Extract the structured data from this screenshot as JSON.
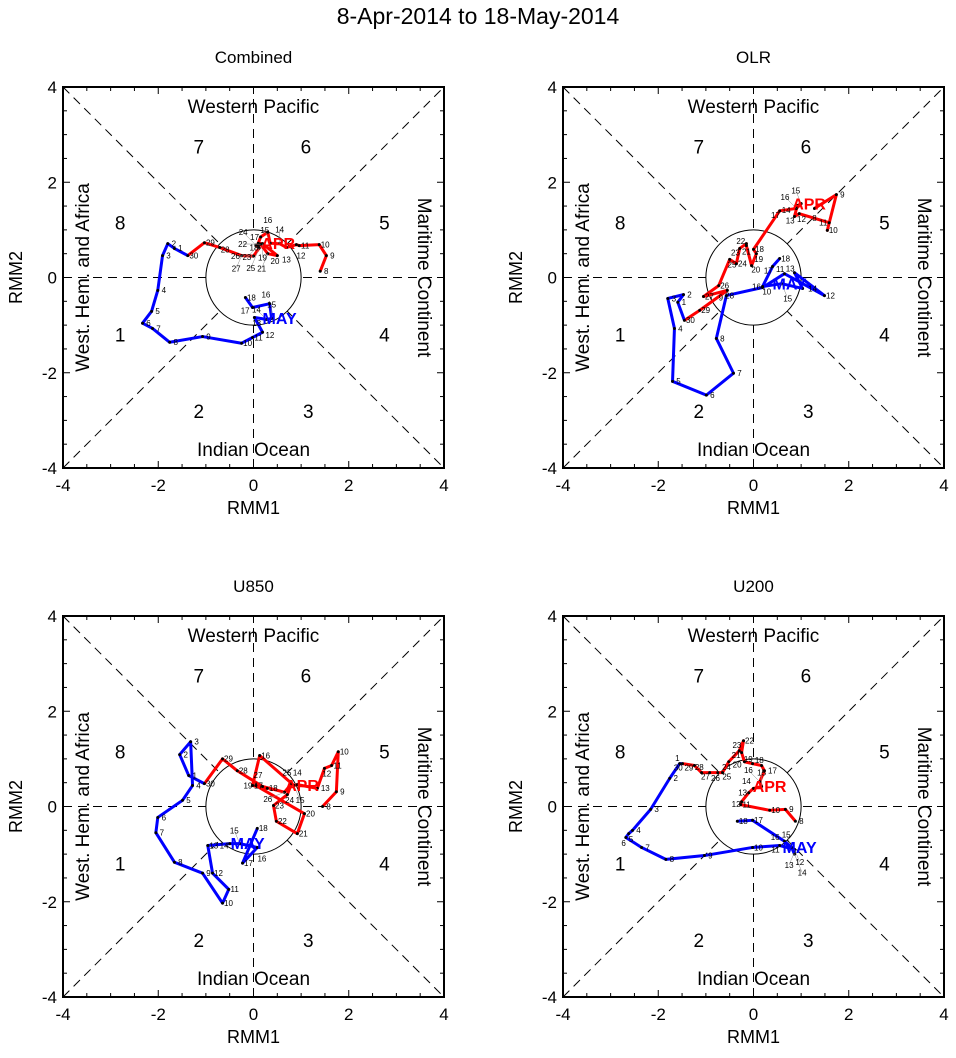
{
  "title": "8-Apr-2014 to 18-May-2014",
  "axis": {
    "xlabel": "RMM1",
    "ylabel": "RMM2",
    "ticks": [
      -4,
      -2,
      0,
      2,
      4
    ],
    "xlim": [
      -4,
      4
    ],
    "ylim": [
      -4,
      4
    ]
  },
  "regions": {
    "top": "Western Pacific",
    "bottom": "Indian Ocean",
    "left": "West. Hem. and Africa",
    "right": "Maritime Continent"
  },
  "phases": [
    "1",
    "2",
    "3",
    "4",
    "5",
    "6",
    "7",
    "8"
  ],
  "colors": {
    "apr": "#ff0000",
    "may": "#0000ff"
  },
  "chart_data": [
    {
      "type": "line",
      "title": "Combined",
      "series": [
        {
          "name": "APR",
          "days": [
            8,
            9,
            10,
            11,
            12,
            13,
            14,
            15,
            16,
            17,
            18,
            19,
            20,
            21,
            22,
            23,
            24,
            25,
            26,
            27,
            28,
            29,
            30
          ],
          "rmm1": [
            1.4,
            1.53,
            1.38,
            0.96,
            0.9,
            0.69,
            0.55,
            0.35,
            0.3,
            0.15,
            0.1,
            0.19,
            0.5,
            0.3,
            0.15,
            0.1,
            0.05,
            0.12,
            0.0,
            -0.25,
            -0.71,
            -1.03,
            -1.38
          ],
          "rmm2": [
            0.13,
            0.46,
            0.69,
            0.67,
            0.69,
            0.63,
            0.71,
            0.72,
            0.95,
            0.85,
            0.72,
            0.71,
            0.46,
            0.5,
            0.7,
            0.66,
            0.68,
            0.62,
            0.45,
            0.46,
            0.63,
            0.73,
            0.46
          ]
        },
        {
          "name": "MAY",
          "days": [
            1,
            2,
            3,
            4,
            5,
            6,
            7,
            8,
            9,
            10,
            11,
            12,
            13,
            14,
            15,
            16,
            17,
            18
          ],
          "rmm1": [
            -1.66,
            -1.8,
            -1.91,
            -2.01,
            -2.14,
            -2.33,
            -2.12,
            -1.76,
            -1.07,
            -0.25,
            -0.02,
            0.19,
            0.02,
            0.27,
            0.38,
            0.34,
            -0.02,
            -0.17
          ],
          "rmm2": [
            0.61,
            0.71,
            0.46,
            -0.27,
            -0.71,
            -0.96,
            -1.07,
            -1.36,
            -1.24,
            -1.38,
            -1.26,
            -1.15,
            -0.84,
            -0.88,
            -0.86,
            -0.55,
            -0.63,
            -0.42
          ]
        }
      ]
    },
    {
      "type": "line",
      "title": "OLR",
      "series": [
        {
          "name": "APR",
          "days": [
            8,
            9,
            10,
            11,
            12,
            13,
            14,
            15,
            16,
            17,
            18,
            19,
            20,
            21,
            22,
            23,
            24,
            25,
            26,
            27,
            28,
            29,
            30
          ],
          "rmm1": [
            1.28,
            1.74,
            1.55,
            1.59,
            0.96,
            0.86,
            0.92,
            1.0,
            0.9,
            0.55,
            0.0,
            0.06,
            -0.04,
            -0.15,
            -0.15,
            -0.29,
            -0.36,
            -0.5,
            -0.73,
            -1.05,
            -0.55,
            -1.13,
            -1.45
          ],
          "rmm2": [
            1.45,
            1.74,
            0.99,
            1.15,
            1.34,
            1.28,
            1.51,
            1.55,
            1.45,
            1.4,
            0.59,
            0.5,
            0.25,
            0.67,
            0.71,
            0.61,
            0.29,
            0.38,
            -0.17,
            -0.4,
            -0.27,
            -0.69,
            -0.9
          ]
        },
        {
          "name": "MAY",
          "days": [
            1,
            2,
            3,
            4,
            5,
            6,
            7,
            8,
            9,
            10,
            11,
            12,
            13,
            14,
            15,
            16,
            17,
            18
          ],
          "rmm1": [
            -1.59,
            -1.47,
            -1.8,
            -1.66,
            -1.7,
            -0.99,
            -0.42,
            -0.78,
            -0.57,
            0.19,
            0.65,
            1.49,
            0.86,
            1.03,
            0.59,
            0.19,
            0.4,
            0.55
          ],
          "rmm2": [
            -0.52,
            -0.36,
            -0.44,
            -1.07,
            -2.18,
            -2.47,
            -2.01,
            -1.28,
            -0.38,
            -0.21,
            0.08,
            -0.38,
            0.1,
            -0.23,
            -0.13,
            -0.19,
            0.23,
            0.4
          ]
        }
      ]
    },
    {
      "type": "line",
      "title": "U850",
      "series": [
        {
          "name": "APR",
          "days": [
            8,
            9,
            10,
            11,
            12,
            13,
            14,
            15,
            16,
            17,
            18,
            19,
            20,
            21,
            22,
            23,
            24,
            25,
            26,
            27,
            28,
            29,
            30
          ],
          "rmm1": [
            1.45,
            1.74,
            1.78,
            1.64,
            1.49,
            1.34,
            0.92,
            0.85,
            0.13,
            -0.02,
            0.29,
            0.05,
            1.07,
            0.92,
            0.48,
            0.42,
            0.71,
            0.8,
            0.65,
            0.19,
            -0.34,
            -0.65,
            -1.03
          ],
          "rmm2": [
            0.0,
            0.31,
            1.15,
            0.86,
            0.8,
            0.38,
            0.46,
            0.44,
            1.07,
            0.44,
            0.38,
            0.44,
            -0.15,
            -0.57,
            -0.31,
            0.02,
            0.25,
            0.48,
            0.3,
            0.42,
            0.75,
            1.0,
            0.48
          ]
        },
        {
          "name": "MAY",
          "days": [
            1,
            2,
            3,
            4,
            5,
            6,
            7,
            8,
            9,
            10,
            11,
            12,
            13,
            14,
            15,
            16,
            17,
            18
          ],
          "rmm1": [
            -1.36,
            -1.55,
            -1.32,
            -1.28,
            -1.49,
            -2.01,
            -2.05,
            -1.66,
            -1.07,
            -0.65,
            -0.52,
            -0.86,
            -0.96,
            -0.5,
            -0.29,
            0.08,
            -0.23,
            0.08
          ],
          "rmm2": [
            0.65,
            1.09,
            1.36,
            0.44,
            0.13,
            -0.23,
            -0.55,
            -1.17,
            -1.4,
            -2.03,
            -1.74,
            -1.4,
            -0.82,
            -0.78,
            -0.78,
            -0.86,
            -1.19,
            -0.46
          ]
        }
      ]
    },
    {
      "type": "line",
      "title": "U200",
      "series": [
        {
          "name": "APR",
          "days": [
            8,
            9,
            10,
            11,
            12,
            13,
            14,
            15,
            16,
            17,
            18,
            19,
            20,
            21,
            22,
            23,
            24,
            25,
            26,
            27,
            28,
            29,
            30
          ],
          "rmm1": [
            0.88,
            0.67,
            0.34,
            -0.27,
            -0.25,
            -0.1,
            0.0,
            0.17,
            0.13,
            0.23,
            0.17,
            -0.02,
            -0.19,
            -0.25,
            -0.21,
            -0.3,
            -0.52,
            -0.65,
            -0.75,
            -0.92,
            -1.09,
            -1.24,
            -1.49
          ],
          "rmm2": [
            -0.31,
            -0.06,
            -0.08,
            0.04,
            0.1,
            0.29,
            0.38,
            0.42,
            0.52,
            0.75,
            0.86,
            0.9,
            0.94,
            1.13,
            1.38,
            1.17,
            0.94,
            0.71,
            0.71,
            0.71,
            0.71,
            0.86,
            0.9
          ]
        },
        {
          "name": "MAY",
          "days": [
            1,
            2,
            3,
            4,
            5,
            6,
            7,
            8,
            9,
            10,
            11,
            12,
            13,
            14,
            15,
            16,
            17,
            18
          ],
          "rmm1": [
            -1.55,
            -1.76,
            -2.16,
            -2.54,
            -2.62,
            -2.68,
            -2.35,
            -1.84,
            -1.03,
            -0.02,
            0.55,
            0.86,
            0.86,
            0.86,
            0.8,
            0.65,
            -0.02,
            -0.34
          ],
          "rmm2": [
            0.9,
            0.59,
            -0.06,
            -0.5,
            -0.57,
            -0.65,
            -0.86,
            -1.11,
            -1.03,
            -0.86,
            -0.82,
            -0.9,
            -0.96,
            -1.0,
            -0.86,
            -0.73,
            -0.29,
            -0.31
          ]
        }
      ]
    }
  ]
}
